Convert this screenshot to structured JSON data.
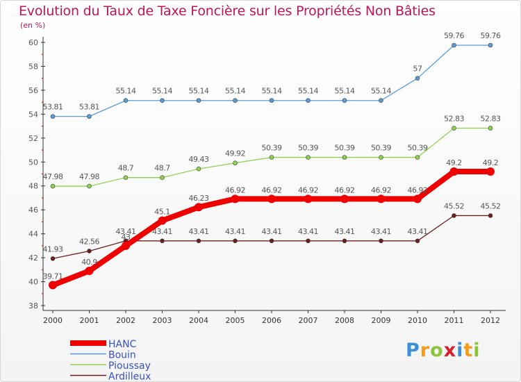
{
  "title": "Evolution du Taux de Taxe Foncière sur les Propriétés Non Bâties",
  "unit": "(en %)",
  "logo": {
    "letters": [
      "P",
      "r",
      "o",
      "x",
      "i",
      "t",
      "i"
    ],
    "colors": [
      "#3d8fd6",
      "#f59b1b",
      "#8cc43c",
      "#d8202e",
      "#3d8fd6",
      "#f59b1b",
      "#8cc43c"
    ]
  },
  "chart_data": {
    "type": "line",
    "title": "Evolution du Taux de Taxe Foncière sur les Propriétés Non Bâties",
    "ylabel": "(en %)",
    "xlabel": "",
    "ylim": [
      38,
      60
    ],
    "yticks": [
      "38",
      "40",
      "42",
      "44",
      "46",
      "48",
      "50",
      "52",
      "54",
      "56",
      "58",
      "60"
    ],
    "categories": [
      "2000",
      "2001",
      "2002",
      "2003",
      "2004",
      "2005",
      "2006",
      "2007",
      "2008",
      "2009",
      "2010",
      "2011",
      "2012"
    ],
    "series": [
      {
        "name": "Ardilleux",
        "color": "#6b1e1e",
        "values": [
          41.93,
          42.56,
          43.41,
          43.41,
          43.41,
          43.41,
          43.41,
          43.41,
          43.41,
          43.41,
          43.41,
          45.52,
          45.52
        ],
        "labels": [
          "41.93",
          "42.56",
          "43.41",
          "43.41",
          "43.41",
          "43.41",
          "43.41",
          "43.41",
          "43.41",
          "43.41",
          "43.41",
          "45.52",
          "45.52"
        ]
      },
      {
        "name": "Pioussay",
        "color": "#8fd14f",
        "values": [
          47.98,
          47.98,
          48.7,
          48.7,
          49.43,
          49.92,
          50.39,
          50.39,
          50.39,
          50.39,
          50.39,
          52.83,
          52.83
        ],
        "labels": [
          "47.98",
          "47.98",
          "48.7",
          "48.7",
          "49.43",
          "49.92",
          "50.39",
          "50.39",
          "50.39",
          "50.39",
          "50.39",
          "52.83",
          "52.83"
        ]
      },
      {
        "name": "Bouin",
        "color": "#5a9bd5",
        "values": [
          53.81,
          53.81,
          55.14,
          55.14,
          55.14,
          55.14,
          55.14,
          55.14,
          55.14,
          55.14,
          57,
          59.76,
          59.76
        ],
        "labels": [
          "53.81",
          "53.81",
          "55.14",
          "55.14",
          "55.14",
          "55.14",
          "55.14",
          "55.14",
          "55.14",
          "55.14",
          "57",
          "59.76",
          "59.76"
        ]
      },
      {
        "name": "HANC",
        "color": "#ee0000",
        "values": [
          39.71,
          40.9,
          43,
          45.1,
          46.23,
          46.92,
          46.92,
          46.92,
          46.92,
          46.92,
          46.92,
          49.2,
          49.2
        ],
        "labels": [
          "39.71",
          "40.9",
          "43",
          "45.1",
          "46.23",
          "46.92",
          "46.92",
          "46.92",
          "46.92",
          "46.92",
          "46.92",
          "49.2",
          "49.2"
        ]
      }
    ],
    "legend": [
      "HANC",
      "Bouin",
      "Pioussay",
      "Ardilleux"
    ],
    "legend_position": "bottom-left"
  }
}
